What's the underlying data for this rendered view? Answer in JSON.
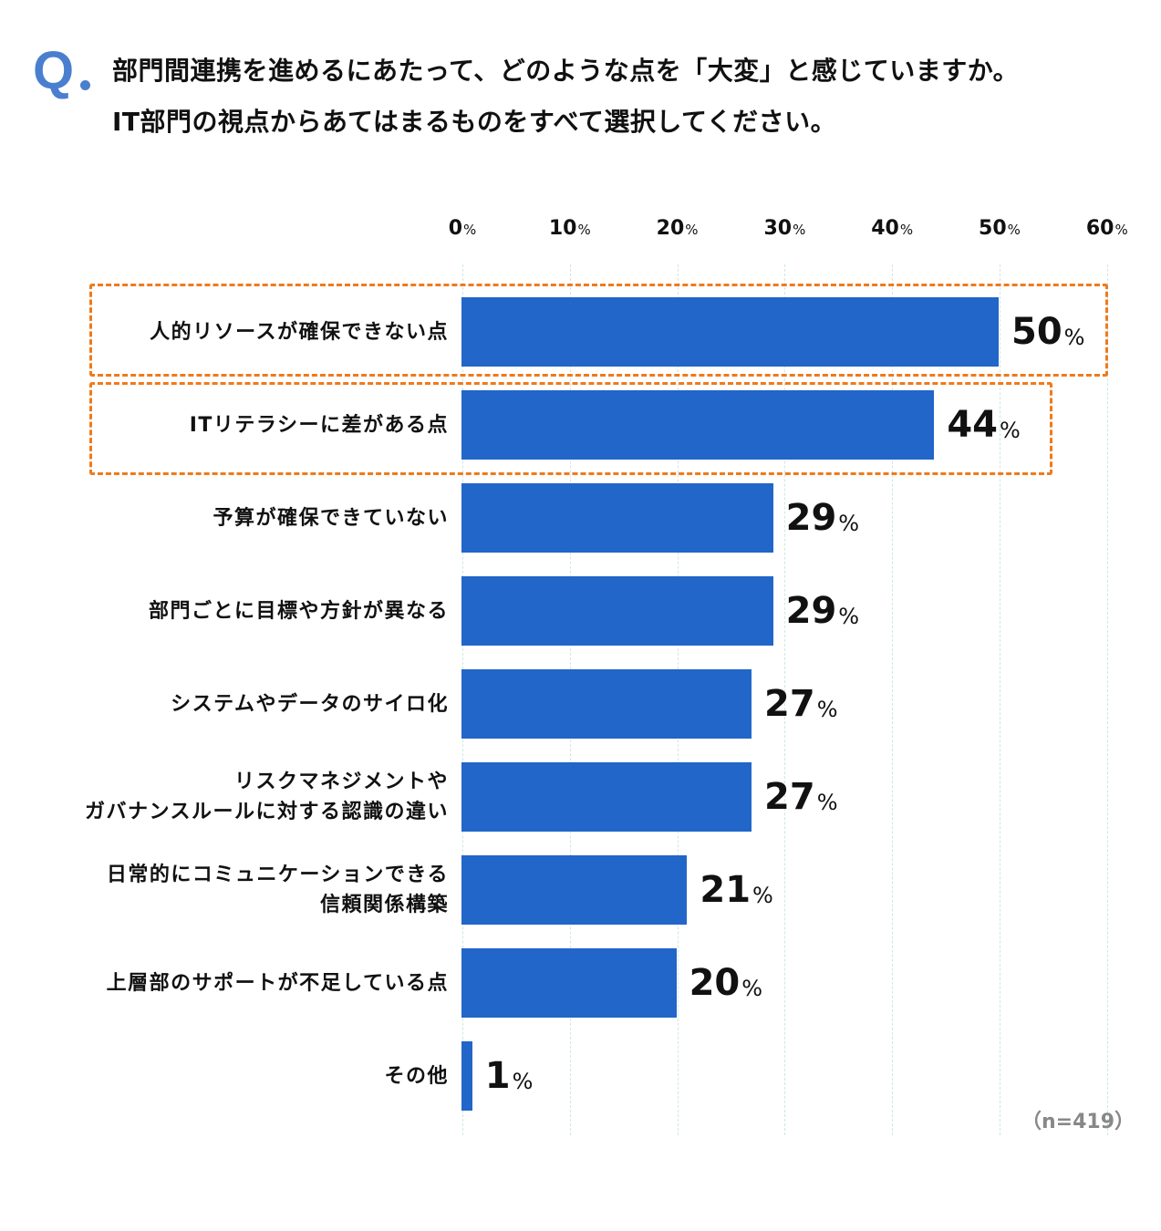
{
  "question": {
    "mark": "Q",
    "lines": [
      "部門間連携を進めるにあたって、どのような点を「大変」と感じていますか。",
      "IT部門の視点からあてはまるものをすべて選択してください。"
    ]
  },
  "colors": {
    "bar": "#2166c8",
    "question_mark": "#4a7fcf",
    "highlight_border": "#ef7a1a",
    "grid": "#cfe6e6",
    "note": "#888888"
  },
  "axis": {
    "ticks": [
      {
        "value": "0",
        "unit": "%"
      },
      {
        "value": "10",
        "unit": "%"
      },
      {
        "value": "20",
        "unit": "%"
      },
      {
        "value": "30",
        "unit": "%"
      },
      {
        "value": "40",
        "unit": "%"
      },
      {
        "value": "50",
        "unit": "%"
      },
      {
        "value": "60",
        "unit": "%"
      }
    ]
  },
  "rows": [
    {
      "label_lines": [
        "人的リソースが確保できない点"
      ],
      "value": "50",
      "unit": "%"
    },
    {
      "label_lines": [
        "ITリテラシーに差がある点"
      ],
      "value": "44",
      "unit": "%"
    },
    {
      "label_lines": [
        "予算が確保できていない"
      ],
      "value": "29",
      "unit": "%"
    },
    {
      "label_lines": [
        "部門ごとに目標や方針が異なる"
      ],
      "value": "29",
      "unit": "%"
    },
    {
      "label_lines": [
        "システムやデータのサイロ化"
      ],
      "value": "27",
      "unit": "%"
    },
    {
      "label_lines": [
        "リスクマネジメントや",
        "ガバナンスルールに対する認識の違い"
      ],
      "value": "27",
      "unit": "%"
    },
    {
      "label_lines": [
        "日常的にコミュニケーションできる",
        "信頼関係構築"
      ],
      "value": "21",
      "unit": "%"
    },
    {
      "label_lines": [
        "上層部のサポートが不足している点"
      ],
      "value": "20",
      "unit": "%"
    },
    {
      "label_lines": [
        "その他"
      ],
      "value": "1",
      "unit": "%"
    }
  ],
  "note": "（n=419）",
  "chart_data": {
    "type": "bar",
    "orientation": "horizontal",
    "title": "部門間連携を進めるにあたって、どのような点を「大変」と感じていますか。IT部門の視点からあてはまるものをすべて選択してください。",
    "categories": [
      "人的リソースが確保できない点",
      "ITリテラシーに差がある点",
      "予算が確保できていない",
      "部門ごとに目標や方針が異なる",
      "システムやデータのサイロ化",
      "リスクマネジメントやガバナンスルールに対する認識の違い",
      "日常的にコミュニケーションできる信頼関係構築",
      "上層部のサポートが不足している点",
      "その他"
    ],
    "values": [
      50,
      44,
      29,
      29,
      27,
      27,
      21,
      20,
      1
    ],
    "unit": "%",
    "xlabel": "",
    "ylabel": "",
    "xlim": [
      0,
      60
    ],
    "x_ticks": [
      "0%",
      "10%",
      "20%",
      "30%",
      "40%",
      "50%",
      "60%"
    ],
    "grid": true,
    "highlighted_categories": [
      "人的リソースが確保できない点",
      "ITリテラシーに差がある点"
    ],
    "annotation": "(n=419)"
  }
}
